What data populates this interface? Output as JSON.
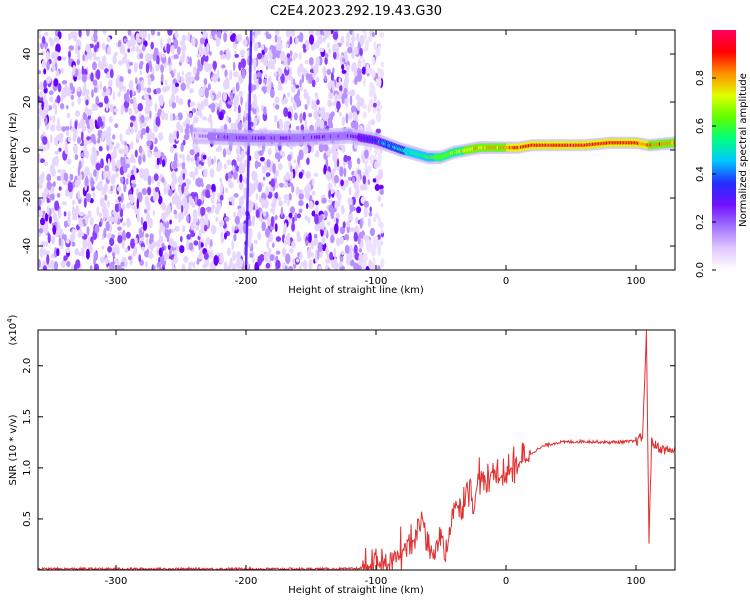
{
  "figure": {
    "title": "C2E4.2023.292.19.43.G30"
  },
  "chart_data": [
    {
      "type": "heatmap",
      "xlabel": "Height of straight line (km)",
      "ylabel": "Frequency (Hz)",
      "xlim": [
        -360,
        130
      ],
      "ylim": [
        -50,
        50
      ],
      "xticks": [
        -300,
        -200,
        -100,
        0,
        100
      ],
      "yticks": [
        -40,
        -20,
        0,
        20,
        40
      ],
      "colorbar": {
        "label": "Normalized spectral amplitude",
        "range": [
          0,
          1
        ],
        "ticks": [
          0.0,
          0.2,
          0.4,
          0.6,
          0.8
        ],
        "colors": [
          "#ffffff",
          "#e0c8ff",
          "#a070ff",
          "#7010ff",
          "#2030ff",
          "#00c8ff",
          "#00ff80",
          "#60ff00",
          "#e0ff00",
          "#ff9000",
          "#ff0000",
          "#ff0060"
        ]
      },
      "ridge": {
        "x": [
          -360,
          -240,
          -200,
          -160,
          -120,
          -100,
          -80,
          -60,
          -50,
          -40,
          -30,
          -20,
          -10,
          0,
          10,
          20,
          40,
          60,
          80,
          100,
          110,
          130
        ],
        "frequency": [
          -2,
          6,
          5,
          5,
          6,
          4,
          0,
          -3,
          -3,
          -1,
          0,
          1,
          1,
          1,
          1,
          2,
          2,
          2,
          3,
          3,
          2,
          3
        ],
        "amplitude": [
          0.1,
          0.15,
          0.22,
          0.22,
          0.25,
          0.35,
          0.5,
          0.6,
          0.65,
          0.7,
          0.75,
          0.75,
          0.8,
          0.85,
          0.9,
          0.92,
          0.95,
          0.95,
          0.92,
          0.9,
          0.85,
          0.8
        ]
      },
      "noise_extent_x": -100
    },
    {
      "type": "line",
      "xlabel": "Height of straight line (km)",
      "ylabel": "SNR (10 * v/v)",
      "y_scale_label": "(x10",
      "y_scale_exp": "4",
      "y_scale_close": ")",
      "xlim": [
        -360,
        130
      ],
      "ylim": [
        0,
        2.35
      ],
      "xticks": [
        -300,
        -200,
        -100,
        0,
        100
      ],
      "yticks": [
        0.5,
        1.0,
        1.5,
        2.0
      ],
      "series": [
        {
          "color": "#e03030",
          "x": [
            -360,
            -120,
            -100,
            -90,
            -80,
            -70,
            -65,
            -60,
            -55,
            -50,
            -45,
            -40,
            -35,
            -30,
            -25,
            -20,
            -15,
            -10,
            -5,
            0,
            10,
            20,
            30,
            40,
            60,
            80,
            100,
            105,
            108,
            110,
            112,
            115,
            120,
            130
          ],
          "y": [
            0.01,
            0.01,
            0.03,
            0.06,
            0.18,
            0.3,
            0.55,
            0.25,
            0.12,
            0.35,
            0.2,
            0.7,
            0.55,
            0.85,
            0.65,
            0.95,
            0.8,
            1.0,
            0.9,
            0.95,
            1.05,
            1.15,
            1.22,
            1.25,
            1.26,
            1.25,
            1.26,
            1.3,
            2.3,
            0.3,
            1.25,
            1.22,
            1.18,
            1.17
          ]
        }
      ]
    }
  ]
}
